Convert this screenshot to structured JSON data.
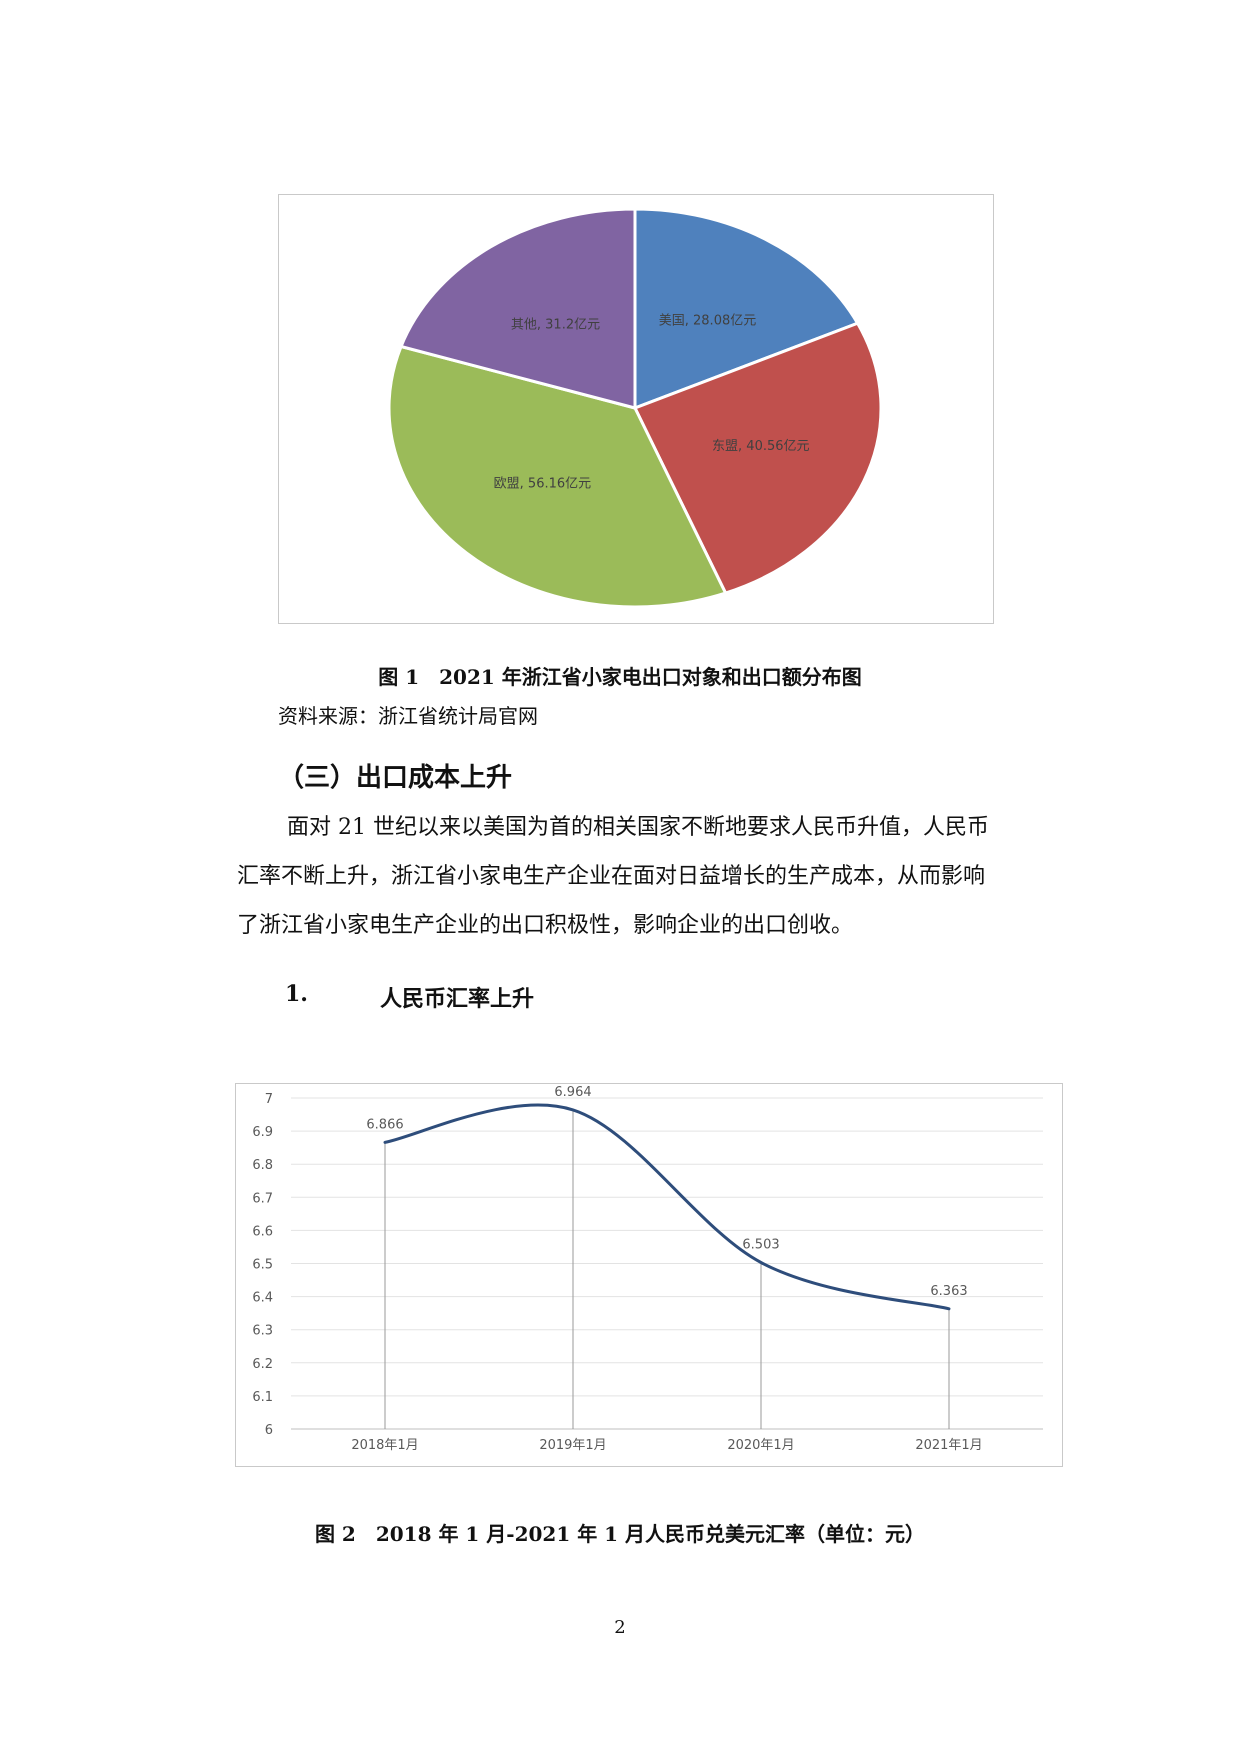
{
  "figure1": {
    "caption": "图 1　2021 年浙江省小家电出口对象和出口额分布图",
    "source": "资料来源：浙江省统计局官网",
    "chart_data": {
      "type": "pie",
      "unit": "亿元",
      "slices": [
        {
          "name": "美国",
          "value": 28.08,
          "label": "美国, 28.08亿元",
          "color": "#4f81bd"
        },
        {
          "name": "东盟",
          "value": 40.56,
          "label": "东盟, 40.56亿元",
          "color": "#c0504d"
        },
        {
          "name": "欧盟",
          "value": 56.16,
          "label": "欧盟, 56.16亿元",
          "color": "#9bbb59"
        },
        {
          "name": "其他",
          "value": 31.2,
          "label": "其他, 31.2亿元",
          "color": "#8064a2"
        }
      ]
    }
  },
  "section": {
    "heading": "（三）出口成本上升",
    "paragraph_lines": [
      "面对 21 世纪以来以美国为首的相关国家不断地要求人民币升值，人民币",
      "汇率不断上升，浙江省小家电生产企业在面对日益增长的生产成本，从而影响",
      "了浙江省小家电生产企业的出口积极性，影响企业的出口创收。"
    ],
    "subheading_number": "1.",
    "subheading_text": "人民币汇率上升"
  },
  "figure2": {
    "caption": "图 2　2018 年 1 月-2021 年 1 月人民币兑美元汇率（单位：元）",
    "chart_data": {
      "type": "line",
      "categories": [
        "2018年1月",
        "2019年1月",
        "2020年1月",
        "2021年1月"
      ],
      "series": [
        {
          "values": [
            6.866,
            6.964,
            6.503,
            6.363
          ],
          "color": "#2e4d7b"
        }
      ],
      "value_labels": [
        "6.866",
        "6.964",
        "6.503",
        "6.363"
      ],
      "ylim": [
        6,
        7
      ],
      "yticks": [
        "6",
        "6.1",
        "6.2",
        "6.3",
        "6.4",
        "6.5",
        "6.6",
        "6.7",
        "6.8",
        "6.9",
        "7"
      ],
      "grid": true,
      "drop_lines": true
    }
  },
  "page_number": "2"
}
